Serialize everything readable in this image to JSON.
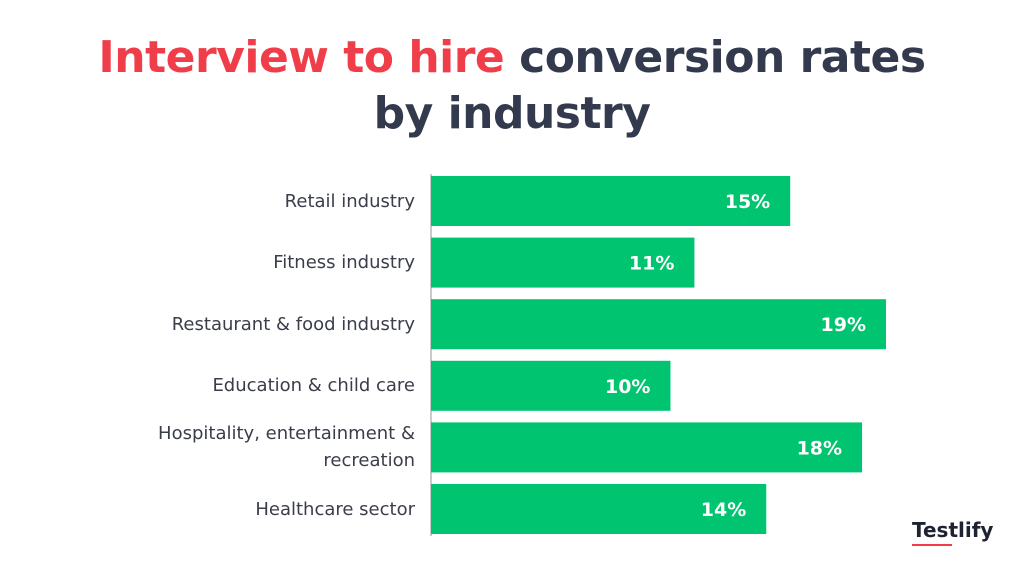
{
  "chart_data": {
    "type": "bar",
    "orientation": "horizontal",
    "title_parts": [
      "Interview to hire",
      "conversion rates by industry"
    ],
    "categories": [
      "Retail industry",
      "Fitness industry",
      "Restaurant & food industry",
      "Education & child care",
      "Hospitality, entertainment & recreation",
      "Healthcare sector"
    ],
    "values": [
      15,
      11,
      19,
      10,
      18,
      14
    ],
    "value_labels": [
      "15%",
      "11%",
      "19%",
      "10%",
      "18%",
      "14%"
    ],
    "color": "#00c46f",
    "title_colors": [
      "#ef3e4a",
      "#343a4e"
    ]
  },
  "logo": "Testlify"
}
